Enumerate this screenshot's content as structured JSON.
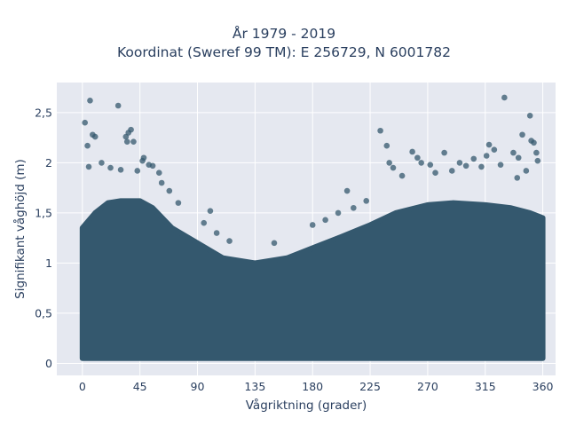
{
  "chart_data": {
    "type": "scatter",
    "title_line1": "År 1979 - 2019",
    "title_line2": "Koordinat (Sweref 99 TM): E 256729, N 6001782",
    "xlabel": "Vågriktning (grader)",
    "ylabel": "Signifikant våghöjd (m)",
    "xlim": [
      -20,
      370
    ],
    "ylim": [
      -0.12,
      2.8
    ],
    "xticks": [
      0,
      45,
      90,
      135,
      180,
      225,
      270,
      315,
      360
    ],
    "xtick_labels": [
      "0",
      "45",
      "90",
      "135",
      "180",
      "225",
      "270",
      "315",
      "360"
    ],
    "yticks": [
      0,
      0.5,
      1,
      1.5,
      2,
      2.5
    ],
    "ytick_labels": [
      "0",
      "0,5",
      "1",
      "1,5",
      "2",
      "2,5"
    ],
    "grid": true,
    "legend": "none",
    "marker_color": "#34586e",
    "background_color": "#e5e8f0",
    "dense_band": {
      "x": [
        0,
        10,
        20,
        30,
        45,
        55,
        70,
        90,
        110,
        135,
        160,
        180,
        200,
        225,
        245,
        270,
        290,
        315,
        335,
        350,
        360
      ],
      "lower": [
        0.05,
        0.05,
        0.05,
        0.05,
        0.05,
        0.05,
        0.05,
        0.05,
        0.05,
        0.05,
        0.05,
        0.05,
        0.05,
        0.05,
        0.05,
        0.05,
        0.05,
        0.05,
        0.05,
        0.05,
        0.05
      ],
      "upper": [
        1.35,
        1.5,
        1.6,
        1.62,
        1.62,
        1.55,
        1.35,
        1.2,
        1.05,
        1.0,
        1.05,
        1.15,
        1.25,
        1.38,
        1.5,
        1.58,
        1.6,
        1.58,
        1.55,
        1.5,
        1.45
      ]
    },
    "outliers": [
      {
        "x": 2,
        "y": 2.4
      },
      {
        "x": 6,
        "y": 2.62
      },
      {
        "x": 28,
        "y": 2.57
      },
      {
        "x": 8,
        "y": 2.28
      },
      {
        "x": 10,
        "y": 2.26
      },
      {
        "x": 4,
        "y": 2.17
      },
      {
        "x": 36,
        "y": 2.3
      },
      {
        "x": 34,
        "y": 2.26
      },
      {
        "x": 38,
        "y": 2.33
      },
      {
        "x": 35,
        "y": 2.21
      },
      {
        "x": 40,
        "y": 2.21
      },
      {
        "x": 48,
        "y": 2.05
      },
      {
        "x": 47,
        "y": 2.02
      },
      {
        "x": 52,
        "y": 1.98
      },
      {
        "x": 55,
        "y": 1.97
      },
      {
        "x": 60,
        "y": 1.9
      },
      {
        "x": 15,
        "y": 2.0
      },
      {
        "x": 22,
        "y": 1.95
      },
      {
        "x": 5,
        "y": 1.96
      },
      {
        "x": 30,
        "y": 1.93
      },
      {
        "x": 43,
        "y": 1.92
      },
      {
        "x": 62,
        "y": 1.8
      },
      {
        "x": 68,
        "y": 1.72
      },
      {
        "x": 75,
        "y": 1.6
      },
      {
        "x": 95,
        "y": 1.4
      },
      {
        "x": 100,
        "y": 1.52
      },
      {
        "x": 105,
        "y": 1.3
      },
      {
        "x": 115,
        "y": 1.22
      },
      {
        "x": 150,
        "y": 1.2
      },
      {
        "x": 180,
        "y": 1.38
      },
      {
        "x": 190,
        "y": 1.43
      },
      {
        "x": 200,
        "y": 1.5
      },
      {
        "x": 207,
        "y": 1.72
      },
      {
        "x": 212,
        "y": 1.55
      },
      {
        "x": 222,
        "y": 1.62
      },
      {
        "x": 233,
        "y": 2.32
      },
      {
        "x": 238,
        "y": 2.17
      },
      {
        "x": 240,
        "y": 2.0
      },
      {
        "x": 243,
        "y": 1.95
      },
      {
        "x": 250,
        "y": 1.87
      },
      {
        "x": 258,
        "y": 2.11
      },
      {
        "x": 262,
        "y": 2.05
      },
      {
        "x": 265,
        "y": 2.0
      },
      {
        "x": 272,
        "y": 1.98
      },
      {
        "x": 283,
        "y": 2.1
      },
      {
        "x": 295,
        "y": 2.0
      },
      {
        "x": 300,
        "y": 1.97
      },
      {
        "x": 306,
        "y": 2.04
      },
      {
        "x": 312,
        "y": 1.96
      },
      {
        "x": 318,
        "y": 2.18
      },
      {
        "x": 322,
        "y": 2.13
      },
      {
        "x": 316,
        "y": 2.07
      },
      {
        "x": 327,
        "y": 1.98
      },
      {
        "x": 330,
        "y": 2.65
      },
      {
        "x": 337,
        "y": 2.1
      },
      {
        "x": 341,
        "y": 2.05
      },
      {
        "x": 344,
        "y": 2.28
      },
      {
        "x": 350,
        "y": 2.47
      },
      {
        "x": 351,
        "y": 2.22
      },
      {
        "x": 353,
        "y": 2.2
      },
      {
        "x": 355,
        "y": 2.1
      },
      {
        "x": 347,
        "y": 1.92
      },
      {
        "x": 340,
        "y": 1.85
      },
      {
        "x": 356,
        "y": 2.02
      },
      {
        "x": 289,
        "y": 1.92
      },
      {
        "x": 276,
        "y": 1.9
      }
    ]
  }
}
